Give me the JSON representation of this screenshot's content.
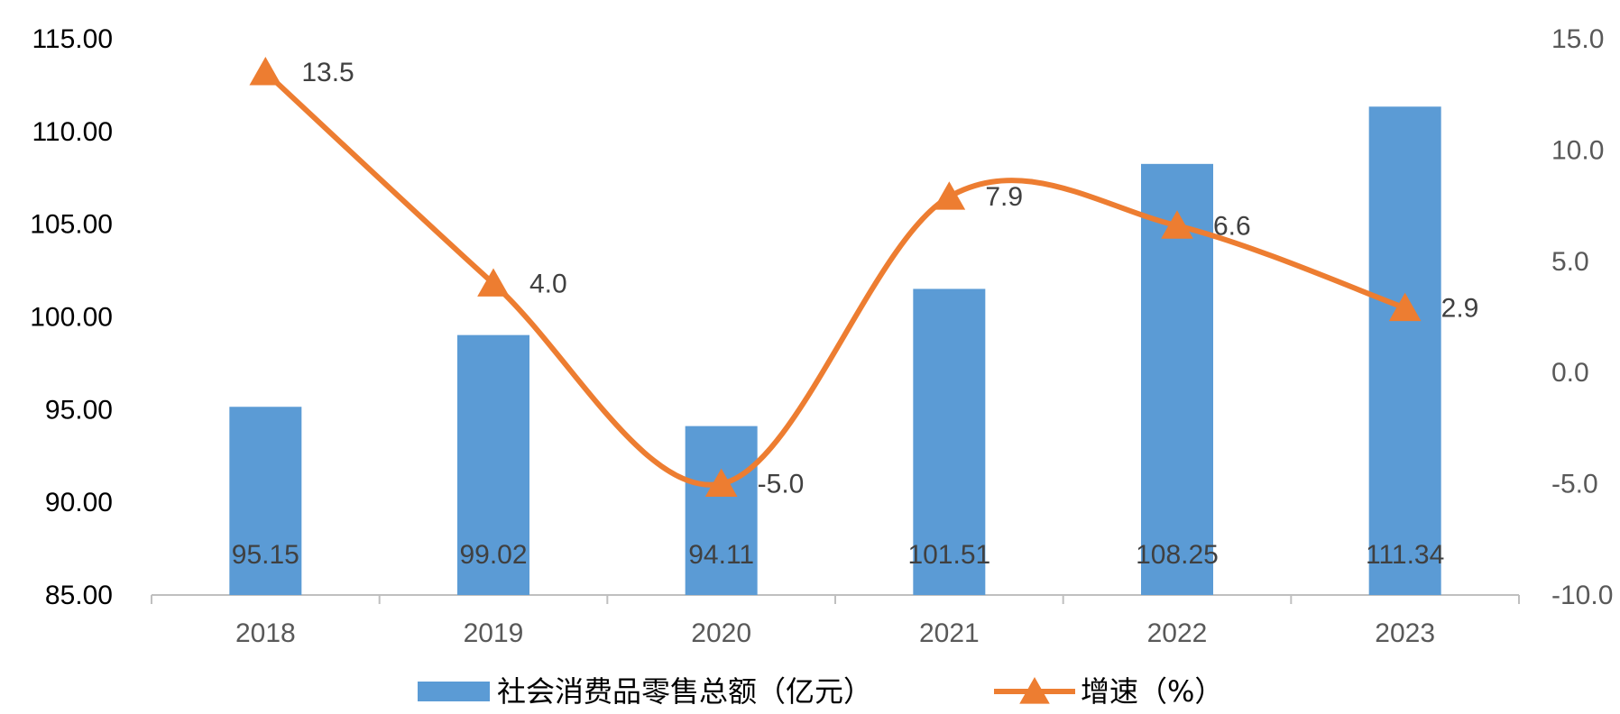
{
  "chart_data": {
    "type": "bar",
    "categories": [
      "2018",
      "2019",
      "2020",
      "2021",
      "2022",
      "2023"
    ],
    "series": [
      {
        "name": "社会消费品零售总额（亿元）",
        "type": "bar",
        "axis": "left",
        "values": [
          95.15,
          99.02,
          94.11,
          101.51,
          108.25,
          111.34
        ],
        "labels": [
          "95.15",
          "99.02",
          "94.11",
          "101.51",
          "108.25",
          "111.34"
        ],
        "color": "#5B9BD5"
      },
      {
        "name": "增速（%）",
        "type": "line",
        "axis": "right",
        "smooth": true,
        "marker": "triangle",
        "values": [
          13.5,
          4.0,
          -5.0,
          7.9,
          6.6,
          2.9
        ],
        "labels": [
          "13.5",
          "4.0",
          "-5.0",
          "7.9",
          "6.6",
          "2.9"
        ],
        "color": "#ED7D31"
      }
    ],
    "y_left": {
      "ylim": [
        85,
        115
      ],
      "ticks": [
        "85.00",
        "90.00",
        "95.00",
        "100.00",
        "105.00",
        "110.00",
        "115.00"
      ]
    },
    "y_right": {
      "ylim": [
        -10,
        15
      ],
      "ticks": [
        "-10.0",
        "-5.0",
        "0.0",
        "5.0",
        "10.0",
        "15.0"
      ]
    },
    "grid": false,
    "legend_position": "bottom"
  }
}
